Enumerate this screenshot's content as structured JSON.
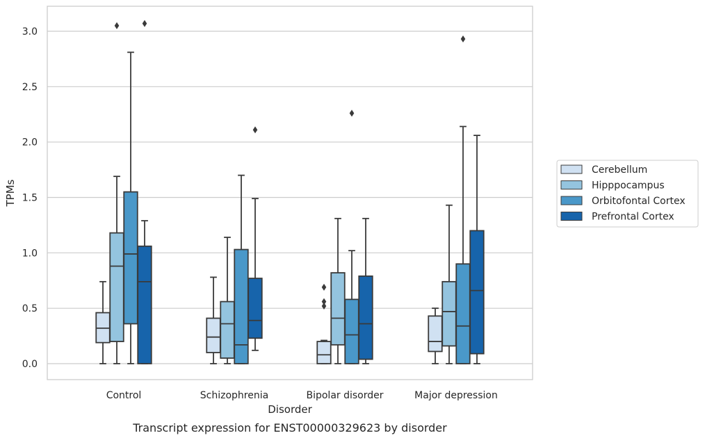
{
  "chart_data": {
    "type": "box",
    "caption": "Transcript expression for ENST00000329623 by disorder",
    "xlabel": "Disorder",
    "ylabel": "TPMs",
    "ylim": [
      -0.15,
      3.23
    ],
    "yticks": [
      0.0,
      0.5,
      1.0,
      1.5,
      2.0,
      2.5,
      3.0
    ],
    "ytick_labels": [
      "0.0",
      "0.5",
      "1.0",
      "1.5",
      "2.0",
      "2.5",
      "3.0"
    ],
    "grid": "horizontal",
    "legend_position": "right",
    "categories": [
      "Control",
      "Schizophrenia",
      "Bipolar disorder",
      "Major depression"
    ],
    "series": [
      {
        "name": "Cerebellum",
        "color": "#d0e1f2",
        "boxes": [
          {
            "whislo": 0.0,
            "q1": 0.19,
            "med": 0.32,
            "q3": 0.46,
            "whishi": 0.74,
            "fliers": []
          },
          {
            "whislo": 0.0,
            "q1": 0.1,
            "med": 0.24,
            "q3": 0.41,
            "whishi": 0.78,
            "fliers": []
          },
          {
            "whislo": 0.0,
            "q1": 0.0,
            "med": 0.08,
            "q3": 0.2,
            "whishi": 0.21,
            "fliers": [
              0.52,
              0.56,
              0.69
            ]
          },
          {
            "whislo": 0.0,
            "q1": 0.11,
            "med": 0.2,
            "q3": 0.43,
            "whishi": 0.5,
            "fliers": []
          }
        ]
      },
      {
        "name": "Hipppocampus",
        "color": "#94c4df",
        "boxes": [
          {
            "whislo": 0.0,
            "q1": 0.2,
            "med": 0.88,
            "q3": 1.18,
            "whishi": 1.69,
            "fliers": [
              3.05
            ]
          },
          {
            "whislo": 0.0,
            "q1": 0.05,
            "med": 0.36,
            "q3": 0.56,
            "whishi": 1.14,
            "fliers": []
          },
          {
            "whislo": 0.0,
            "q1": 0.17,
            "med": 0.41,
            "q3": 0.82,
            "whishi": 1.31,
            "fliers": []
          },
          {
            "whislo": 0.0,
            "q1": 0.16,
            "med": 0.47,
            "q3": 0.74,
            "whishi": 1.43,
            "fliers": []
          }
        ]
      },
      {
        "name": "Orbitofontal Cortex",
        "color": "#4a98c9",
        "boxes": [
          {
            "whislo": 0.0,
            "q1": 0.36,
            "med": 0.99,
            "q3": 1.55,
            "whishi": 2.81,
            "fliers": []
          },
          {
            "whislo": 0.0,
            "q1": 0.0,
            "med": 0.17,
            "q3": 1.03,
            "whishi": 1.7,
            "fliers": []
          },
          {
            "whislo": 0.0,
            "q1": 0.0,
            "med": 0.26,
            "q3": 0.58,
            "whishi": 1.02,
            "fliers": [
              2.26
            ]
          },
          {
            "whislo": 0.0,
            "q1": 0.0,
            "med": 0.34,
            "q3": 0.9,
            "whishi": 2.14,
            "fliers": [
              2.93
            ]
          }
        ]
      },
      {
        "name": "Prefrontal Cortex",
        "color": "#1764ab",
        "boxes": [
          {
            "whislo": 0.0,
            "q1": 0.0,
            "med": 0.74,
            "q3": 1.06,
            "whishi": 1.29,
            "fliers": [
              3.07
            ]
          },
          {
            "whislo": 0.12,
            "q1": 0.23,
            "med": 0.39,
            "q3": 0.77,
            "whishi": 1.49,
            "fliers": [
              2.11
            ]
          },
          {
            "whislo": 0.0,
            "q1": 0.04,
            "med": 0.36,
            "q3": 0.79,
            "whishi": 1.31,
            "fliers": []
          },
          {
            "whislo": 0.0,
            "q1": 0.09,
            "med": 0.66,
            "q3": 1.2,
            "whishi": 2.06,
            "fliers": []
          }
        ]
      }
    ]
  }
}
